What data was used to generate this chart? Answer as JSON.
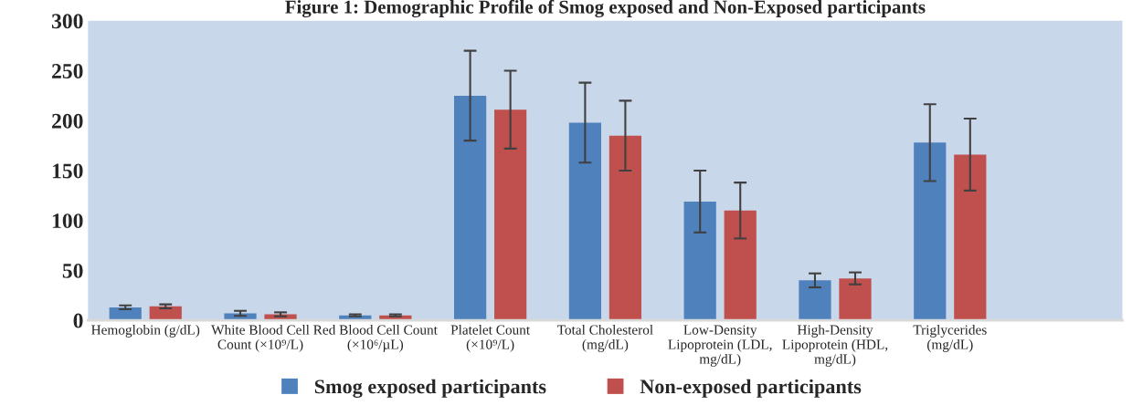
{
  "chart_data": {
    "type": "bar",
    "title": "Figure 1: Demographic Profile of Smog exposed and Non-Exposed participants",
    "categories": [
      "Hemoglobin (g/dL)",
      "White Blood Cell Count (×10⁹/L)",
      "Red Blood Cell Count (×10⁶/µL)",
      "Platelet Count (×10⁹/L)",
      "Total Cholesterol (mg/dL)",
      "Low-Density Lipoprotein (LDL, mg/dL)",
      "High-Density Lipoprotein (HDL, mg/dL)",
      "Triglycerides (mg/dL)",
      null
    ],
    "series": [
      {
        "name": "Smog exposed participants",
        "color": "#4f81bd",
        "values": [
          13,
          7,
          5,
          225,
          198,
          119,
          40,
          178,
          null
        ],
        "errors": [
          2,
          2.5,
          1,
          45,
          40,
          31,
          7,
          38.5,
          null
        ]
      },
      {
        "name": "Non-exposed participants",
        "color": "#c0504d",
        "values": [
          14,
          6,
          5,
          211,
          185,
          110,
          42,
          166,
          null
        ],
        "errors": [
          2,
          2,
          1,
          39,
          35,
          28,
          6,
          36,
          null
        ]
      }
    ],
    "ylim": [
      0,
      300
    ],
    "yticks": [
      0,
      50,
      100,
      150,
      200,
      250,
      300
    ],
    "grid": false,
    "legend": "bottom"
  }
}
